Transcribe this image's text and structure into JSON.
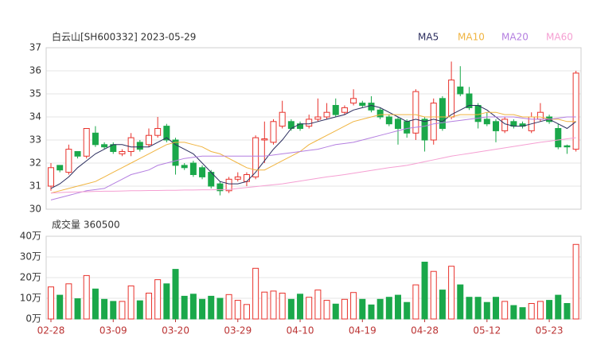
{
  "chart_data": [
    {
      "type": "candlestick",
      "title": "白云山[SH600332] 2023-05-29",
      "up_color": "#e8322c",
      "down_color": "#1aa84a",
      "ylim": [
        30,
        37
      ],
      "yticks": [
        30,
        31,
        32,
        33,
        34,
        35,
        36,
        37
      ],
      "grid": true,
      "open": [
        31.0,
        31.9,
        31.6,
        32.5,
        32.3,
        33.3,
        32.8,
        32.8,
        32.4,
        32.5,
        32.9,
        32.8,
        33.2,
        33.6,
        33.0,
        31.9,
        32.0,
        31.8,
        31.6,
        31.1,
        30.8,
        31.3,
        31.2,
        31.4,
        33.0,
        32.9,
        33.6,
        33.8,
        33.7,
        33.6,
        33.9,
        34.0,
        34.5,
        34.2,
        34.6,
        34.6,
        34.6,
        34.3,
        34.0,
        33.9,
        33.8,
        33.3,
        33.9,
        33.0,
        34.8,
        34.0,
        35.3,
        35.0,
        34.5,
        33.9,
        33.8,
        33.4,
        33.8,
        33.7,
        33.4,
        33.9,
        34.0,
        33.5,
        32.75,
        32.6
      ],
      "high": [
        32.0,
        31.9,
        32.8,
        32.5,
        33.5,
        33.6,
        32.9,
        32.9,
        32.6,
        33.3,
        33.0,
        33.5,
        34.0,
        33.7,
        33.1,
        32.0,
        32.1,
        31.9,
        31.7,
        31.2,
        31.4,
        31.6,
        31.6,
        33.2,
        33.8,
        33.9,
        34.7,
        33.9,
        33.8,
        34.1,
        34.8,
        34.6,
        34.8,
        34.5,
        35.2,
        34.7,
        34.9,
        34.4,
        34.1,
        34.0,
        33.9,
        35.2,
        34.0,
        34.8,
        34.9,
        36.4,
        36.2,
        35.3,
        34.6,
        34.2,
        33.9,
        34.0,
        33.9,
        33.8,
        34.2,
        34.6,
        34.1,
        33.7,
        32.8,
        36.0
      ],
      "low": [
        30.8,
        31.6,
        31.5,
        32.2,
        32.2,
        32.7,
        32.6,
        32.4,
        32.3,
        32.3,
        32.5,
        32.7,
        33.1,
        32.9,
        31.5,
        31.7,
        31.4,
        31.3,
        30.9,
        30.6,
        30.7,
        31.2,
        31.0,
        31.3,
        32.0,
        32.8,
        33.5,
        33.4,
        33.4,
        33.5,
        33.8,
        33.9,
        34.0,
        34.1,
        34.5,
        34.4,
        34.2,
        33.9,
        33.6,
        32.8,
        33.1,
        33.0,
        32.5,
        32.8,
        33.4,
        33.9,
        34.9,
        34.3,
        33.5,
        33.6,
        32.9,
        33.3,
        33.5,
        33.5,
        33.3,
        33.8,
        33.7,
        32.6,
        32.4,
        32.5
      ],
      "close": [
        31.8,
        31.7,
        32.6,
        32.3,
        33.5,
        32.8,
        32.7,
        32.5,
        32.5,
        33.1,
        32.6,
        33.2,
        33.5,
        33.0,
        31.9,
        31.8,
        31.5,
        31.4,
        31.0,
        30.8,
        31.3,
        31.4,
        31.5,
        33.1,
        33.05,
        33.8,
        34.2,
        33.5,
        33.5,
        33.9,
        34.0,
        34.2,
        34.1,
        34.4,
        34.8,
        34.5,
        34.3,
        34.0,
        33.7,
        33.5,
        33.3,
        35.1,
        33.0,
        34.6,
        33.5,
        35.6,
        35.0,
        34.4,
        33.8,
        33.7,
        33.4,
        33.9,
        33.6,
        33.6,
        34.0,
        34.2,
        33.8,
        32.7,
        32.7,
        35.9
      ],
      "lines": [
        {
          "name": "MA5",
          "color": "#2b2d5e",
          "values": [
            30.9,
            31.1,
            31.4,
            31.8,
            32.1,
            32.4,
            32.6,
            32.8,
            32.8,
            32.7,
            32.7,
            32.7,
            32.9,
            33.1,
            32.8,
            32.6,
            32.4,
            32.0,
            31.6,
            31.2,
            31.1,
            31.1,
            31.2,
            31.6,
            32.1,
            32.6,
            33.0,
            33.5,
            33.7,
            33.7,
            33.8,
            33.9,
            34.0,
            34.1,
            34.3,
            34.4,
            34.5,
            34.4,
            34.2,
            34.0,
            33.8,
            33.9,
            33.8,
            33.9,
            33.8,
            34.1,
            34.3,
            34.5,
            34.5,
            34.3,
            34.0,
            33.7,
            33.6,
            33.6,
            33.7,
            33.8,
            33.9,
            33.7,
            33.5,
            33.8
          ]
        },
        {
          "name": "MA10",
          "color": "#f0b440",
          "values": [
            30.7,
            30.8,
            30.9,
            31.0,
            31.1,
            31.2,
            31.4,
            31.6,
            31.8,
            32.0,
            32.2,
            32.4,
            32.6,
            32.8,
            32.9,
            32.9,
            32.8,
            32.7,
            32.5,
            32.4,
            32.2,
            32.0,
            31.8,
            31.7,
            31.7,
            31.9,
            32.1,
            32.3,
            32.5,
            32.8,
            33.0,
            33.2,
            33.4,
            33.6,
            33.8,
            33.9,
            34.0,
            34.1,
            34.1,
            34.1,
            34.1,
            34.1,
            34.0,
            34.0,
            34.0,
            34.0,
            34.1,
            34.1,
            34.1,
            34.2,
            34.2,
            34.1,
            34.1,
            34.0,
            34.0,
            34.0,
            33.9,
            33.9,
            33.8,
            33.8
          ]
        },
        {
          "name": "MA20",
          "color": "#b47fe0",
          "values": [
            30.4,
            30.5,
            30.6,
            30.7,
            30.8,
            30.85,
            30.9,
            31.1,
            31.3,
            31.5,
            31.6,
            31.7,
            31.9,
            32.0,
            32.1,
            32.2,
            32.25,
            32.3,
            32.3,
            32.3,
            32.3,
            32.3,
            32.3,
            32.3,
            32.3,
            32.35,
            32.4,
            32.45,
            32.5,
            32.55,
            32.6,
            32.7,
            32.8,
            32.85,
            32.9,
            33.0,
            33.1,
            33.2,
            33.3,
            33.4,
            33.5,
            33.55,
            33.6,
            33.7,
            33.75,
            33.8,
            33.85,
            33.9,
            33.95,
            34.0,
            34.0,
            34.0,
            34.0,
            33.95,
            33.9,
            33.9,
            33.9,
            33.95,
            34.0,
            34.0
          ]
        },
        {
          "name": "MA60",
          "color": "#f59fd2",
          "values": [
            30.7,
            30.72,
            30.74,
            30.75,
            30.76,
            30.77,
            30.78,
            30.78,
            30.79,
            30.8,
            30.8,
            30.81,
            30.81,
            30.82,
            30.82,
            30.83,
            30.83,
            30.84,
            30.84,
            30.85,
            30.85,
            30.9,
            30.94,
            30.98,
            31.02,
            31.06,
            31.1,
            31.16,
            31.22,
            31.28,
            31.34,
            31.4,
            31.45,
            31.5,
            31.56,
            31.62,
            31.68,
            31.74,
            31.8,
            31.85,
            31.9,
            31.98,
            32.06,
            32.14,
            32.22,
            32.3,
            32.36,
            32.42,
            32.48,
            32.54,
            32.6,
            32.66,
            32.72,
            32.78,
            32.84,
            32.9,
            32.95,
            33.0,
            33.05,
            33.1
          ]
        }
      ]
    },
    {
      "type": "bar",
      "title": "成交量 360500",
      "categories": [
        "02-28",
        null,
        null,
        null,
        null,
        null,
        null,
        "03-09",
        null,
        null,
        null,
        null,
        null,
        null,
        "03-20",
        null,
        null,
        null,
        null,
        null,
        null,
        "03-29",
        null,
        null,
        null,
        null,
        null,
        null,
        "04-10",
        null,
        null,
        null,
        null,
        null,
        null,
        "04-19",
        null,
        null,
        null,
        null,
        null,
        null,
        "04-28",
        null,
        null,
        null,
        null,
        null,
        null,
        "05-12",
        null,
        null,
        null,
        null,
        null,
        null,
        "05-23",
        null,
        null,
        null
      ],
      "values": [
        15.5,
        11.5,
        17,
        9.8,
        21,
        14.5,
        9.5,
        8.5,
        8.5,
        16,
        8.8,
        12.5,
        19,
        17,
        24,
        11,
        12,
        9.5,
        11,
        10,
        11.8,
        9,
        7,
        24.5,
        13,
        13.5,
        12.5,
        9.5,
        12,
        10.5,
        14,
        9,
        7.2,
        9.5,
        12.8,
        9.5,
        6.8,
        9.5,
        10.5,
        11.5,
        8,
        16.5,
        27.5,
        23,
        14,
        25.5,
        16.5,
        10.5,
        10.5,
        8,
        10.5,
        8.5,
        6.5,
        5.5,
        7.5,
        8.5,
        9,
        11.5,
        7.5,
        36.05
      ],
      "ylim": [
        0,
        40
      ],
      "yticks": [
        {
          "value": 0,
          "label": "0万"
        },
        {
          "value": 10,
          "label": "10万"
        },
        {
          "value": 20,
          "label": "20万"
        },
        {
          "value": 30,
          "label": "30万"
        },
        {
          "value": 40,
          "label": "40万"
        }
      ],
      "grid": true
    }
  ]
}
